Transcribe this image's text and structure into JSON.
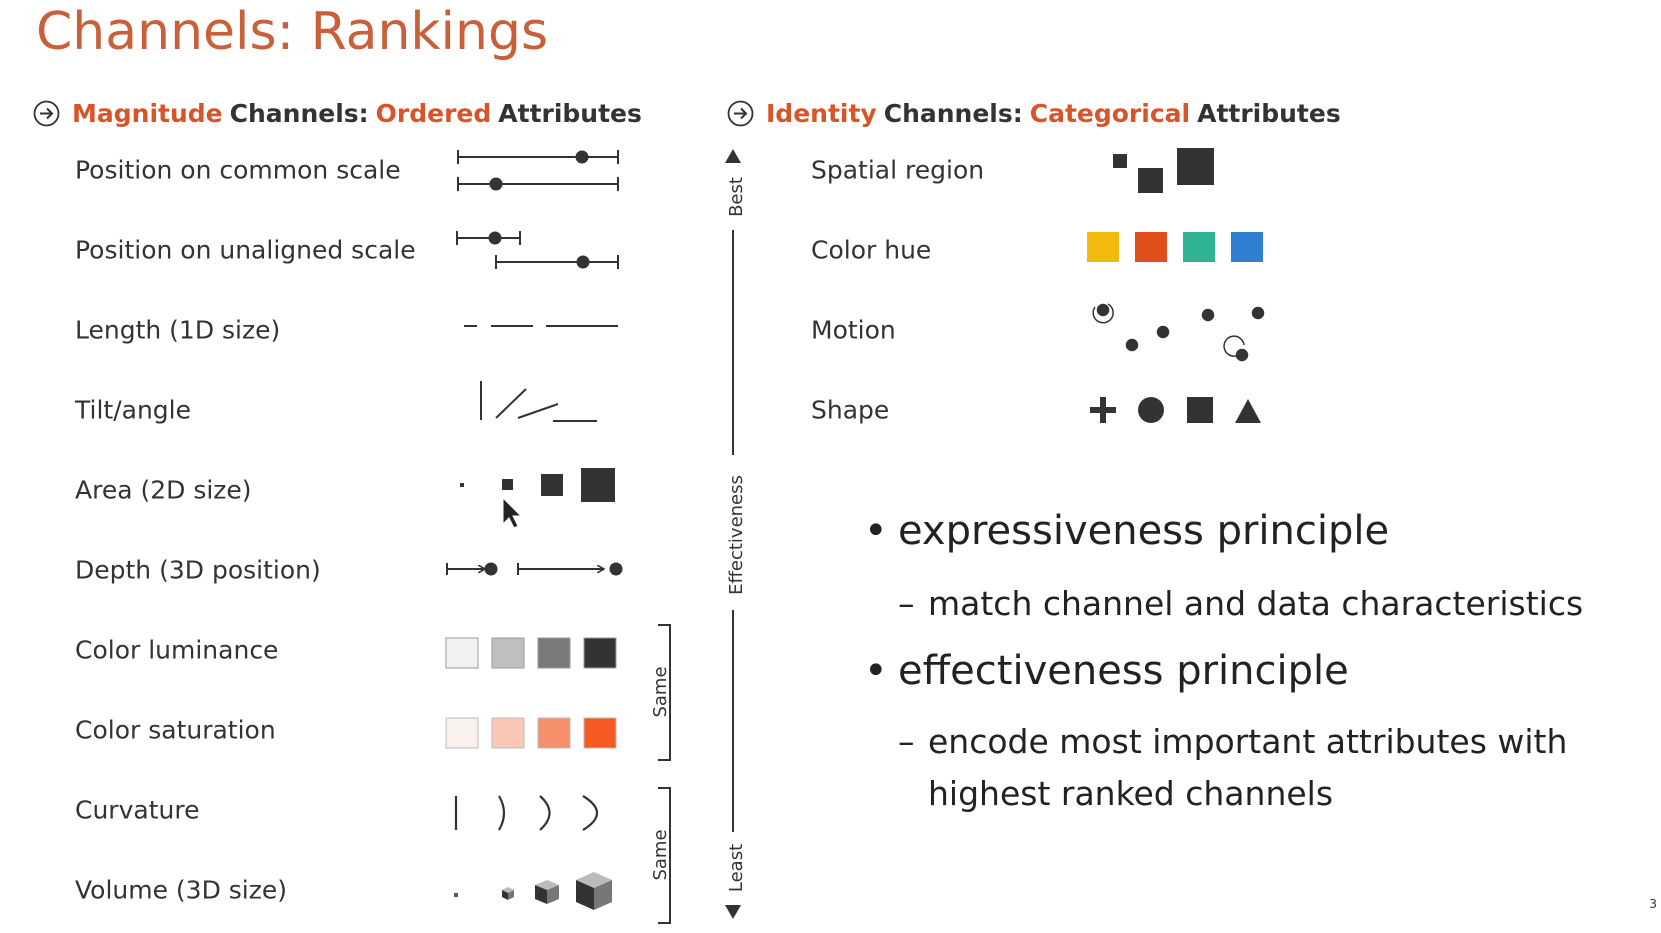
{
  "title": "Channels: Rankings",
  "magnitude": {
    "heading": {
      "w1": "Magnitude",
      "w2": "Channels:",
      "w3": "Ordered",
      "w4": "Attributes"
    },
    "channels": [
      "Position on common scale",
      "Position on unaligned scale",
      "Length (1D size)",
      "Tilt/angle",
      "Area (2D size)",
      "Depth (3D position)",
      "Color luminance",
      "Color saturation",
      "Curvature",
      "Volume (3D size)"
    ]
  },
  "identity": {
    "heading": {
      "w1": "Identity",
      "w2": "Channels:",
      "w3": "Categorical",
      "w4": "Attributes"
    },
    "channels": [
      "Spatial region",
      "Color hue",
      "Motion",
      "Shape"
    ],
    "hue_colors": [
      "#f2b90f",
      "#e04e1c",
      "#2fb394",
      "#2f7fd3"
    ]
  },
  "scale": {
    "best": "Best",
    "effectiveness": "Effectiveness",
    "least": "Least",
    "same": "Same"
  },
  "principles": [
    {
      "title": "expressiveness principle",
      "details": [
        "match channel and data characteristics"
      ]
    },
    {
      "title": "effectiveness principle",
      "details": [
        "encode most important attributes with",
        "highest ranked channels"
      ]
    }
  ],
  "colors": {
    "title": "#c8603a",
    "highlight": "#d8552a",
    "luminance": [
      "#f2f2f2",
      "#c0c0c0",
      "#7a7a7a",
      "#333333"
    ],
    "saturation": [
      "#fbf1ec",
      "#f9c7b4",
      "#f58f6c",
      "#f55a22"
    ]
  },
  "page_number": "3"
}
